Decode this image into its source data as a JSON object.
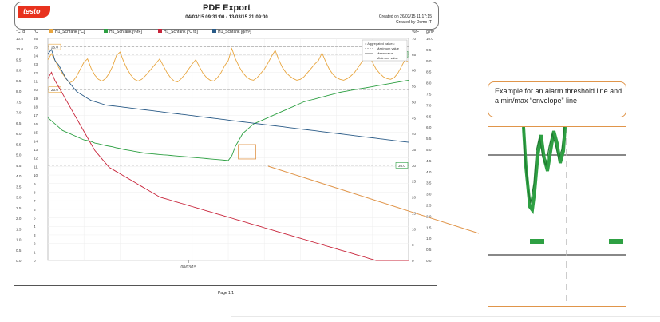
{
  "header": {
    "logo_text": "testo",
    "title": "PDF Export",
    "subtitle": "04/03/15 09:31:00 - 13/03/15 21:09:00",
    "created_on": "Created on  26/03/15 11:17:15",
    "created_by": "Created by  Demo IT"
  },
  "footer": {
    "page": "Page 1/1"
  },
  "callout": {
    "text": "Example for an alarm threshold line and a min/max “envelope” line"
  },
  "colors": {
    "temp_c": "#e8a640",
    "humidity": "#2ea043",
    "dewpoint": "#c8243a",
    "abs_humidity": "#2a5b87",
    "accent": "#e0954a"
  },
  "chart_data": {
    "type": "line",
    "x_tick_label": "08/03/15",
    "legend": [
      "H1_Schrank [°C]",
      "H1_Schrank [%rF]",
      "H1_Schrank [°C td]",
      "H1_Schrank [g/m³]"
    ],
    "legend_box": [
      "= Aggregated values:",
      "Maximum value",
      "Mean value",
      "Minimum value"
    ],
    "axes": {
      "y_left1": {
        "unit": "°C td",
        "ticks": [
          "10.5",
          "10.0",
          "9.5",
          "9.0",
          "8.5",
          "8.0",
          "7.5",
          "7.0",
          "6.5",
          "6.0",
          "5.5",
          "5.0",
          "4.5",
          "4.0",
          "3.5",
          "3.0",
          "2.5",
          "2.0",
          "1.5",
          "1.0",
          "0.5",
          "0.0"
        ]
      },
      "y_left2": {
        "unit": "°C",
        "ticks": [
          "26",
          "25",
          "24",
          "23",
          "22",
          "21",
          "20",
          "19",
          "18",
          "17",
          "16",
          "15",
          "14",
          "13",
          "12",
          "11",
          "10",
          "9",
          "8",
          "7",
          "6",
          "5",
          "4",
          "3",
          "2",
          "1",
          "0"
        ]
      },
      "y_right1": {
        "unit": "%rF",
        "ticks": [
          "70",
          "65",
          "60",
          "55",
          "50",
          "45",
          "40",
          "35",
          "30",
          "25",
          "20",
          "15",
          "10",
          "5",
          "0"
        ]
      },
      "y_right2": {
        "unit": "g/m³",
        "ticks": [
          "10.0",
          "9.5",
          "9.0",
          "8.5",
          "8.0",
          "7.5",
          "7.0",
          "6.5",
          "6.0",
          "5.5",
          "5.0",
          "4.5",
          "4.0",
          "3.5",
          "3.0",
          "2.5",
          "2.0",
          "1.5",
          "1.0",
          "0.5",
          "0.0"
        ]
      }
    },
    "thresholds": [
      {
        "label": "25.0",
        "value": 25.0,
        "axis": "°C"
      },
      {
        "label": "20.0",
        "value": 20.0,
        "axis": "°C"
      },
      {
        "label": "65.0",
        "value": 65.0,
        "axis": "%rF"
      },
      {
        "label": "30.0",
        "value": 30.0,
        "axis": "%rF"
      }
    ],
    "x_range": [
      0,
      100
    ],
    "x_tick_pos": 39,
    "series": [
      {
        "name": "H1_Schrank [°C]",
        "axis": "°C",
        "color": "#e8a640",
        "x": [
          0,
          1,
          2,
          3,
          4,
          5,
          6,
          7,
          8,
          9,
          10,
          11,
          12,
          13,
          14,
          15,
          16,
          17,
          18,
          19,
          20,
          21,
          22,
          23,
          24,
          25,
          26,
          27,
          28,
          29,
          30,
          31,
          32,
          33,
          34,
          35,
          36,
          37,
          38,
          39,
          40,
          41,
          42,
          43,
          44,
          45,
          46,
          47,
          48,
          49,
          50,
          51,
          52,
          53,
          54,
          55,
          56,
          57,
          58,
          59,
          60,
          61,
          62,
          63,
          64,
          65,
          66,
          67,
          68,
          69,
          70,
          71,
          72,
          73,
          74,
          75,
          76,
          77,
          78,
          79,
          80,
          81,
          82,
          83,
          84,
          85,
          86,
          87,
          88,
          89,
          90,
          91,
          92,
          93,
          94,
          95,
          96,
          97,
          98,
          99,
          100
        ],
        "values": [
          23.5,
          24.2,
          23.4,
          22.6,
          21.9,
          21.3,
          20.8,
          21.0,
          21.6,
          22.4,
          23.2,
          23.6,
          22.5,
          21.7,
          21.2,
          21.0,
          21.3,
          21.9,
          22.8,
          24.0,
          24.4,
          23.3,
          22.4,
          21.7,
          21.2,
          21.0,
          21.2,
          21.6,
          22.1,
          22.6,
          23.1,
          23.6,
          22.8,
          22.0,
          21.4,
          21.0,
          20.9,
          21.3,
          21.8,
          22.4,
          23.0,
          23.5,
          22.7,
          21.9,
          21.4,
          21.1,
          21.0,
          21.4,
          22.0,
          22.8,
          23.4,
          24.8,
          23.6,
          22.7,
          22.0,
          21.5,
          21.2,
          21.1,
          21.4,
          21.9,
          22.4,
          23.1,
          23.9,
          24.6,
          23.5,
          22.6,
          22.0,
          21.6,
          21.3,
          21.1,
          21.2,
          21.5,
          22.0,
          22.5,
          23.0,
          23.4,
          24.3,
          23.3,
          22.4,
          21.8,
          21.4,
          21.2,
          21.1,
          21.3,
          21.6,
          22.0,
          22.6,
          23.2,
          23.8,
          24.0,
          23.2,
          22.4,
          21.9,
          21.5,
          21.3,
          21.2,
          21.4,
          21.9,
          22.7,
          23.5,
          23.2
        ]
      },
      {
        "name": "H1_Schrank [%rF]",
        "axis": "%rF",
        "color": "#2ea043",
        "x": [
          0,
          1,
          2,
          3,
          4,
          5,
          6,
          7,
          8,
          9,
          10,
          11,
          12,
          13,
          14,
          15,
          16,
          17,
          18,
          19,
          20,
          21,
          22,
          23,
          24,
          25,
          26,
          27,
          28,
          29,
          30,
          31,
          32,
          33,
          34,
          35,
          36,
          37,
          38,
          39,
          40,
          41,
          42,
          43,
          44,
          45,
          46,
          47,
          48,
          49,
          50,
          51,
          52,
          53,
          54,
          55,
          56,
          57,
          58,
          59,
          60,
          61,
          62,
          63,
          64,
          65,
          66,
          67,
          68,
          69,
          70,
          71,
          72,
          73,
          74,
          75,
          76,
          77,
          78,
          79,
          80,
          81,
          82,
          83,
          84,
          85,
          86,
          87,
          88,
          89,
          90,
          91,
          92,
          93,
          94,
          95,
          96,
          97,
          98,
          99,
          100
        ],
        "values": [
          45.0,
          44.0,
          43.0,
          42.0,
          41.0,
          40.5,
          40.0,
          39.5,
          39.0,
          38.5,
          38.0,
          37.8,
          37.5,
          37.0,
          36.8,
          36.5,
          36.2,
          36.0,
          35.8,
          35.5,
          35.3,
          35.0,
          34.8,
          34.6,
          34.4,
          34.2,
          34.0,
          33.8,
          33.7,
          33.6,
          33.5,
          33.4,
          33.3,
          33.2,
          33.1,
          33.0,
          32.9,
          32.8,
          32.7,
          32.6,
          32.5,
          32.4,
          32.3,
          32.2,
          32.1,
          32.0,
          31.9,
          31.8,
          31.7,
          31.6,
          31.5,
          33.0,
          36.0,
          38.0,
          40.0,
          41.0,
          42.0,
          43.0,
          43.5,
          44.0,
          44.5,
          45.0,
          45.5,
          46.0,
          46.5,
          47.0,
          47.5,
          48.0,
          48.5,
          49.0,
          49.5,
          50.0,
          50.3,
          50.6,
          50.9,
          51.2,
          51.5,
          51.8,
          52.1,
          52.4,
          52.7,
          53.0,
          53.2,
          53.4,
          53.6,
          53.8,
          54.0,
          54.2,
          54.4,
          54.6,
          54.8,
          55.0,
          55.2,
          55.4,
          55.6,
          55.8,
          56.0,
          56.2,
          56.4,
          56.6,
          56.8
        ]
      },
      {
        "name": "H1_Schrank [°C td]",
        "axis": "°C td",
        "color": "#c8243a",
        "x": [
          0,
          1,
          2,
          3,
          4,
          5,
          6,
          7,
          8,
          9,
          10,
          11,
          12,
          13,
          14,
          15,
          16,
          17,
          18,
          19,
          20,
          21,
          22,
          23,
          24,
          25,
          26,
          27,
          28,
          29,
          30,
          31,
          32,
          33,
          34,
          35,
          36,
          37,
          38,
          39,
          40,
          41,
          42,
          43,
          44,
          45,
          46,
          47,
          48,
          49,
          50,
          51,
          52,
          53,
          54,
          55,
          56,
          57,
          58,
          59,
          60,
          61,
          62,
          63,
          64,
          65,
          66,
          67,
          68,
          69,
          70,
          71,
          72,
          73,
          74,
          75,
          76,
          77,
          78,
          79,
          80,
          81,
          82,
          83,
          84,
          85,
          86,
          87,
          88,
          89,
          90,
          91,
          92,
          93,
          94,
          95,
          96,
          97,
          98,
          99,
          100
        ],
        "values": [
          8.6,
          8.9,
          8.5,
          8.2,
          7.9,
          7.6,
          7.3,
          7.0,
          6.7,
          6.4,
          6.1,
          5.8,
          5.5,
          5.2,
          5.0,
          4.8,
          4.6,
          4.4,
          4.3,
          4.2,
          4.1,
          4.0,
          3.9,
          3.8,
          3.7,
          3.6,
          3.5,
          3.4,
          3.3,
          3.2,
          3.1,
          3.0,
          2.95,
          2.9,
          2.85,
          2.8,
          2.75,
          2.7,
          2.65,
          2.6,
          2.55,
          2.5,
          2.45,
          2.4,
          2.35,
          2.3,
          2.25,
          2.2,
          2.15,
          2.1,
          2.05,
          2.0,
          1.95,
          1.9,
          1.85,
          1.8,
          1.75,
          1.7,
          1.65,
          1.6,
          1.55,
          1.5,
          1.45,
          1.4,
          1.35,
          1.3,
          1.25,
          1.2,
          1.15,
          1.1,
          1.05,
          1.0,
          0.95,
          0.9,
          0.85,
          0.8,
          0.75,
          0.7,
          0.65,
          0.6,
          0.55,
          0.5,
          0.45,
          0.4,
          0.35,
          0.3,
          0.25,
          0.2,
          0.15,
          0.1,
          0.05,
          0.0,
          0.0,
          0.0,
          0.0,
          0.0,
          0.0,
          0.0,
          0.0,
          0.0,
          0.0
        ]
      },
      {
        "name": "H1_Schrank [g/m³]",
        "axis": "g/m³",
        "color": "#2a5b87",
        "x": [
          0,
          1,
          2,
          3,
          4,
          5,
          6,
          7,
          8,
          9,
          10,
          11,
          12,
          13,
          14,
          15,
          16,
          17,
          18,
          19,
          20,
          21,
          22,
          23,
          24,
          25,
          26,
          27,
          28,
          29,
          30,
          31,
          32,
          33,
          34,
          35,
          36,
          37,
          38,
          39,
          40,
          41,
          42,
          43,
          44,
          45,
          46,
          47,
          48,
          49,
          50,
          51,
          52,
          53,
          54,
          55,
          56,
          57,
          58,
          59,
          60,
          61,
          62,
          63,
          64,
          65,
          66,
          67,
          68,
          69,
          70,
          71,
          72,
          73,
          74,
          75,
          76,
          77,
          78,
          79,
          80,
          81,
          82,
          83,
          84,
          85,
          86,
          87,
          88,
          89,
          90,
          91,
          92,
          93,
          94,
          95,
          96,
          97,
          98,
          99,
          100
        ],
        "values": [
          9.3,
          9.5,
          9.0,
          8.8,
          8.5,
          8.2,
          8.0,
          7.8,
          7.6,
          7.5,
          7.4,
          7.3,
          7.2,
          7.15,
          7.1,
          7.05,
          7.0,
          6.98,
          6.96,
          6.94,
          6.92,
          6.9,
          6.88,
          6.86,
          6.84,
          6.82,
          6.8,
          6.78,
          6.76,
          6.74,
          6.72,
          6.7,
          6.68,
          6.66,
          6.64,
          6.62,
          6.6,
          6.58,
          6.56,
          6.54,
          6.52,
          6.5,
          6.48,
          6.46,
          6.44,
          6.42,
          6.4,
          6.38,
          6.36,
          6.34,
          6.32,
          6.3,
          6.28,
          6.26,
          6.24,
          6.22,
          6.2,
          6.18,
          6.16,
          6.14,
          6.12,
          6.1,
          6.08,
          6.06,
          6.04,
          6.02,
          6.0,
          5.98,
          5.96,
          5.94,
          5.92,
          5.9,
          5.88,
          5.86,
          5.84,
          5.82,
          5.8,
          5.78,
          5.76,
          5.74,
          5.72,
          5.7,
          5.68,
          5.66,
          5.64,
          5.62,
          5.6,
          5.58,
          5.56,
          5.54,
          5.52,
          5.5,
          5.48,
          5.46,
          5.44,
          5.42,
          5.4,
          5.38,
          5.36,
          5.34,
          5.32
        ]
      }
    ]
  }
}
